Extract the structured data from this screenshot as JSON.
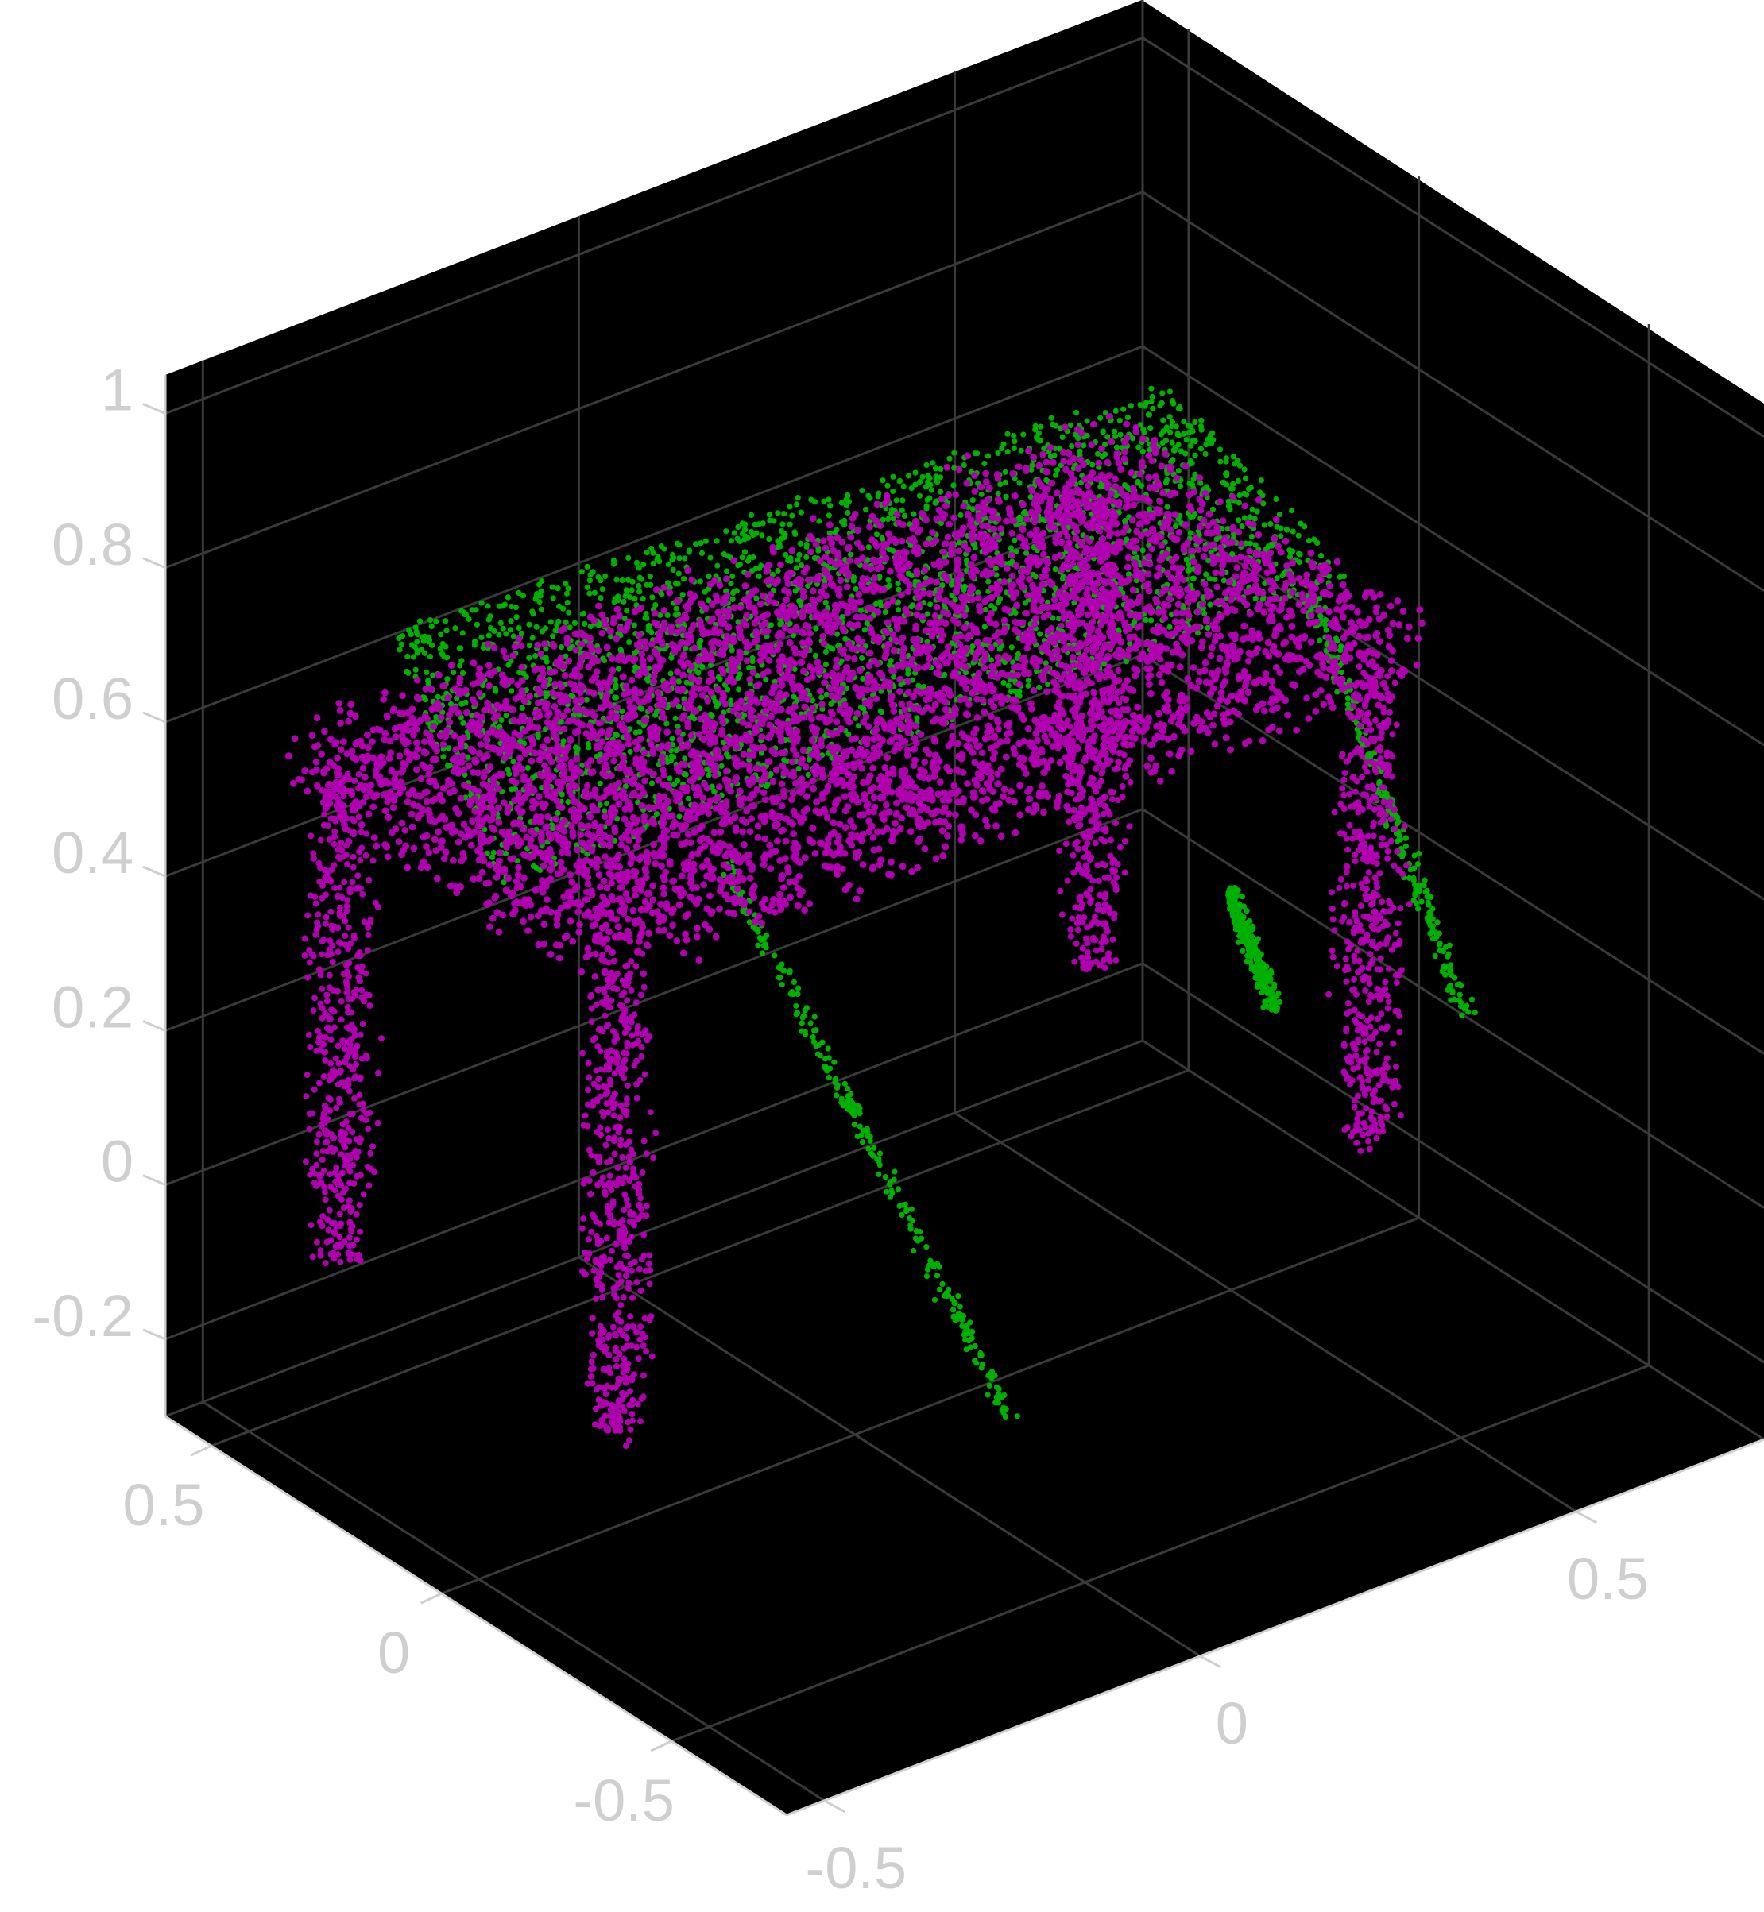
{
  "chart_data": {
    "type": "scatter",
    "projection": "3d",
    "background_color": "#000000",
    "grid": true,
    "grid_color": "#3a3a3a",
    "title": "",
    "xlabel": "",
    "ylabel": "",
    "zlabel": "",
    "xlim": [
      -0.55,
      0.75
    ],
    "ylim": [
      -0.75,
      0.6
    ],
    "zlim": [
      -0.3,
      1.05
    ],
    "z_ticks": [
      {
        "value": 1,
        "label": "1"
      },
      {
        "value": 0.8,
        "label": "0.8"
      },
      {
        "value": 0.6,
        "label": "0.6"
      },
      {
        "value": 0.4,
        "label": "0.4"
      },
      {
        "value": 0.2,
        "label": "0.2"
      },
      {
        "value": 0,
        "label": "0"
      },
      {
        "value": -0.2,
        "label": "-0.2"
      }
    ],
    "y_ticks": [
      {
        "value": 0.5,
        "label": "0.5"
      },
      {
        "value": 0,
        "label": "0"
      },
      {
        "value": -0.5,
        "label": "-0.5"
      }
    ],
    "x_ticks": [
      {
        "value": -0.5,
        "label": "-0.5"
      },
      {
        "value": 0,
        "label": "0"
      },
      {
        "value": 0.5,
        "label": "0.5"
      }
    ],
    "series": [
      {
        "color": "#b000b0",
        "description_shape": "table",
        "tabletop": {
          "x": [
            -0.55,
            0.55
          ],
          "y": [
            -0.35,
            0.35
          ],
          "z": [
            0.6,
            0.7
          ]
        },
        "legs": [
          {
            "x": -0.5,
            "y": -0.3,
            "z_bottom": 0.0,
            "z_top": 0.62
          },
          {
            "x": 0.5,
            "y": -0.3,
            "z_bottom": 0.0,
            "z_top": 0.62
          },
          {
            "x": -0.5,
            "y": 0.3,
            "z_bottom": 0.0,
            "z_top": 0.62
          },
          {
            "x": 0.5,
            "y": 0.3,
            "z_bottom": 0.0,
            "z_top": 0.62
          }
        ]
      },
      {
        "color": "#00b000",
        "description_shape": "tilted table",
        "tabletop_corners": [
          {
            "x": -0.5,
            "y": -0.05,
            "z": 0.62
          },
          {
            "x": 0.45,
            "y": -0.35,
            "z": 0.78
          },
          {
            "x": 0.6,
            "y": 0.3,
            "z": 0.72
          },
          {
            "x": -0.35,
            "y": 0.45,
            "z": 0.7
          }
        ],
        "legs": [
          {
            "top": {
              "x": -0.3,
              "y": -0.2,
              "z": 0.64
            },
            "bottom": {
              "x": -0.1,
              "y": -0.5,
              "z": -0.05
            }
          },
          {
            "top": {
              "x": 0.45,
              "y": -0.25,
              "z": 0.72
            },
            "bottom": {
              "x": 0.6,
              "y": -0.35,
              "z": 0.15
            }
          },
          {
            "top": {
              "x": 0.62,
              "y": 0.2,
              "z": 0.1
            },
            "bottom": {
              "x": 0.65,
              "y": 0.15,
              "z": -0.05
            }
          }
        ]
      }
    ]
  }
}
